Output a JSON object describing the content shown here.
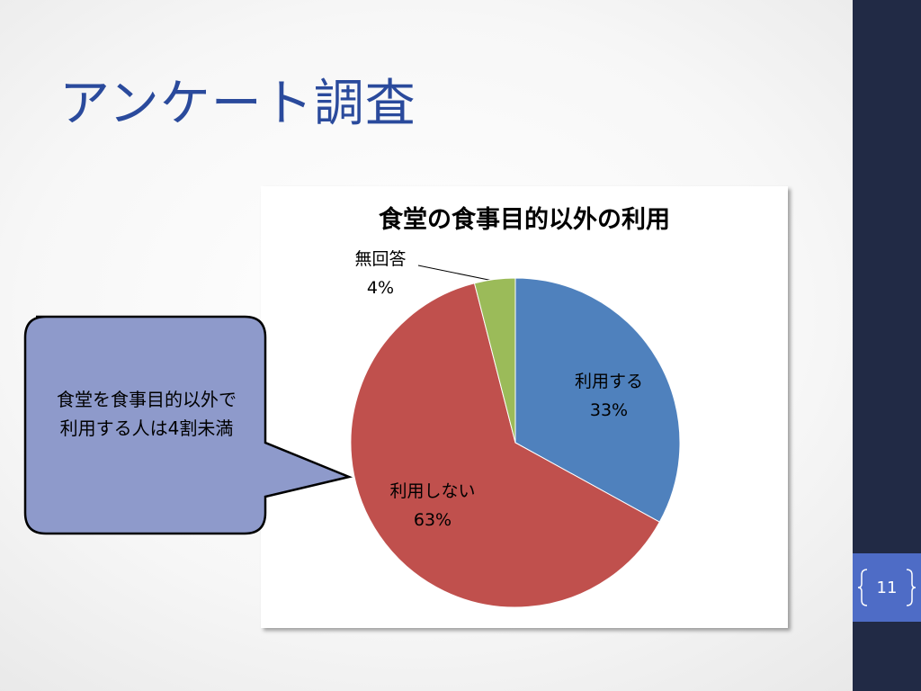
{
  "slide_title": "アンケート調査",
  "chart_data": {
    "type": "pie",
    "title": "食堂の食事目的以外の利用",
    "categories": [
      "利用する",
      "利用しない",
      "無回答"
    ],
    "values": [
      33,
      63,
      4
    ],
    "value_labels": [
      "33%",
      "63%",
      "4%"
    ],
    "colors": [
      "#4f81bd",
      "#c0504d",
      "#9bbb59"
    ]
  },
  "callout": "食堂を食事目的以外で利用する人は4割未満",
  "page_number": "11"
}
